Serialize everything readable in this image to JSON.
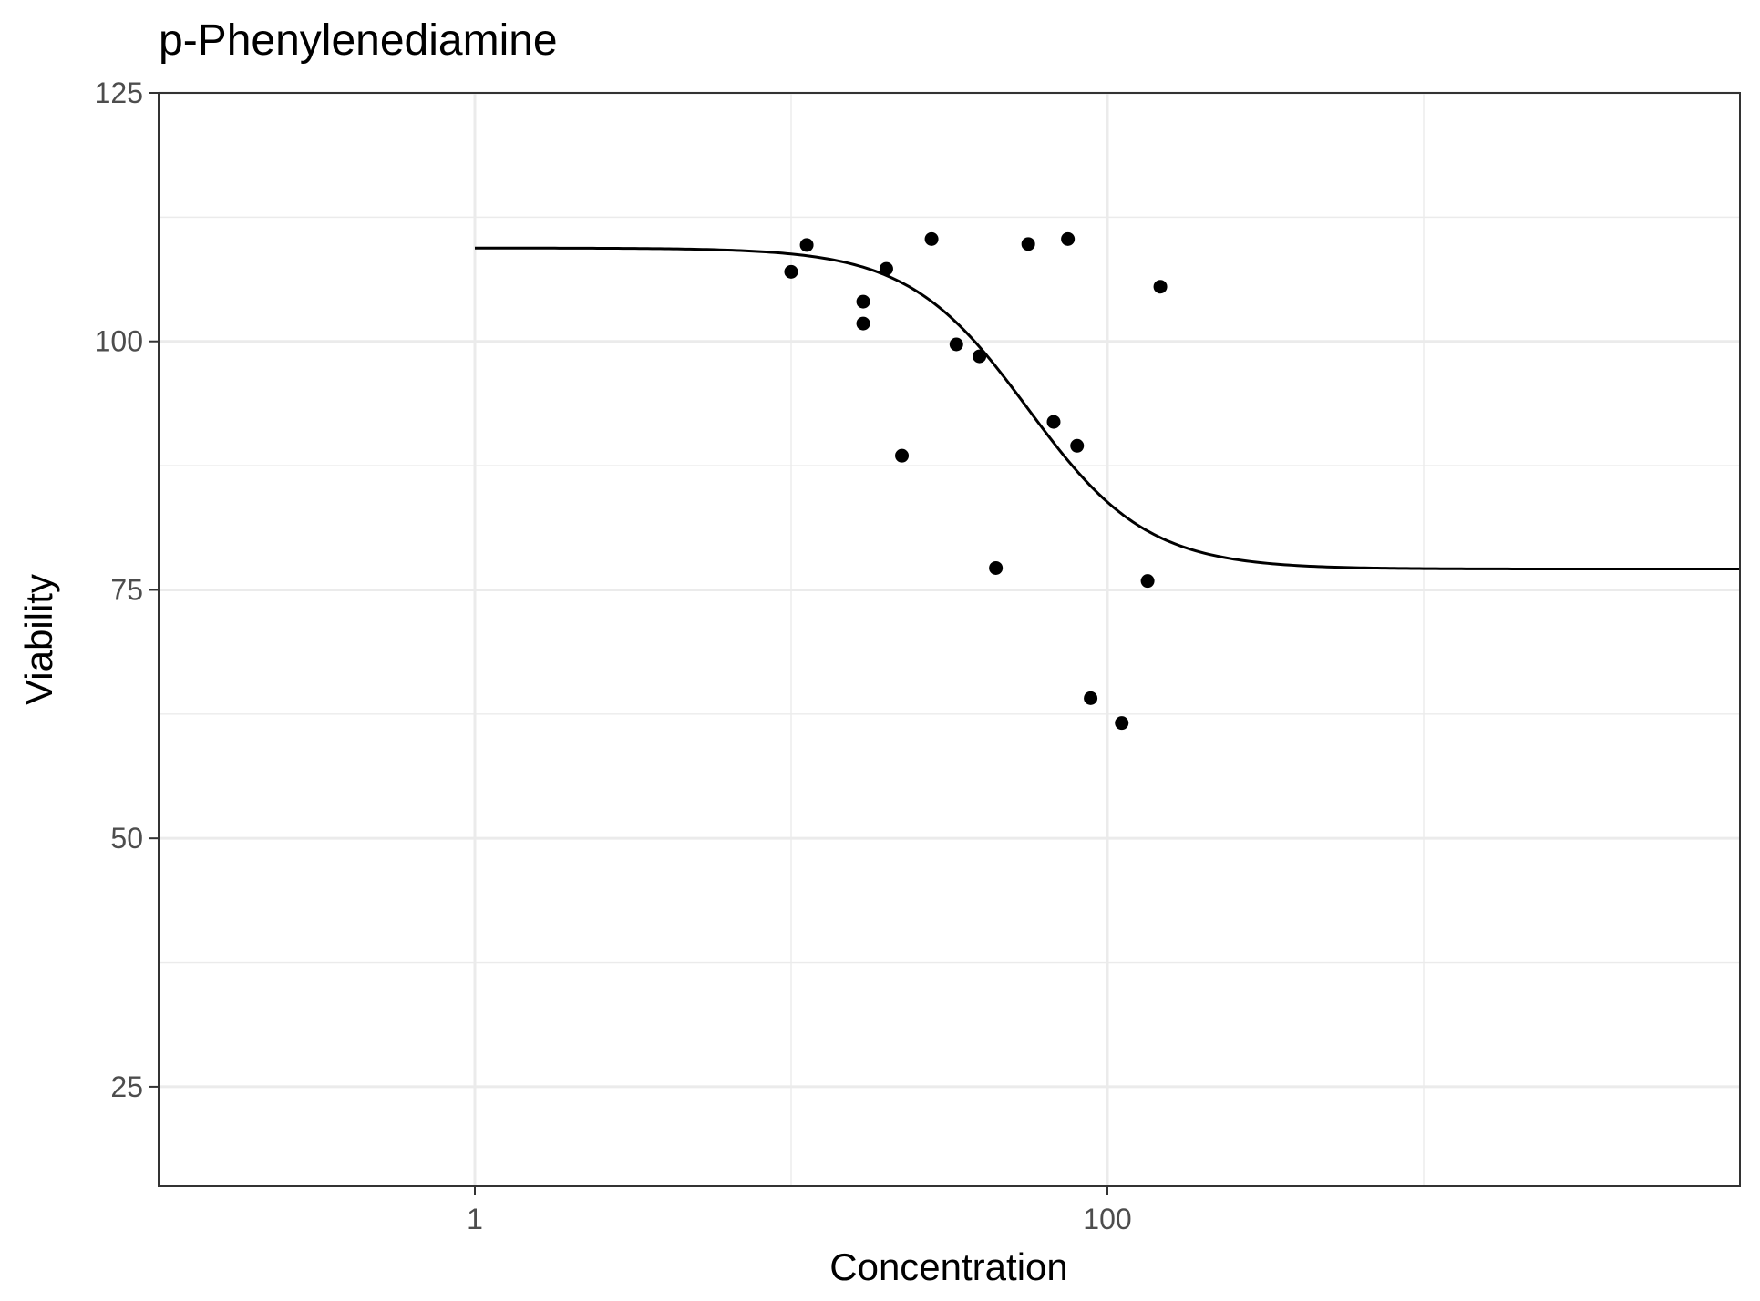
{
  "chart_data": {
    "type": "scatter",
    "title": "p-Phenylenediamine",
    "xlabel": "Concentration",
    "ylabel": "Viability",
    "x_scale": "log10",
    "xlim": [
      0.1,
      10000
    ],
    "ylim": [
      15,
      125
    ],
    "x_ticks_major": [
      {
        "value": 1,
        "label": "1"
      },
      {
        "value": 100,
        "label": "100"
      }
    ],
    "x_grid_minor": [
      0.1,
      10,
      1000,
      10000
    ],
    "y_ticks_major": [
      {
        "value": 25,
        "label": "25"
      },
      {
        "value": 50,
        "label": "50"
      },
      {
        "value": 75,
        "label": "75"
      },
      {
        "value": 100,
        "label": "100"
      },
      {
        "value": 125,
        "label": "125"
      }
    ],
    "y_grid_minor": [
      37.5,
      62.5,
      87.5,
      112.5
    ],
    "grid": true,
    "colors": {
      "points": "#000000",
      "line": "#000000",
      "grid": "#ebebeb",
      "panel_border": "#333333",
      "tick_label": "#4d4d4d"
    },
    "series": [
      {
        "kind": "points",
        "points": [
          {
            "x": 10.0,
            "y": 107.0
          },
          {
            "x": 11.2,
            "y": 109.7
          },
          {
            "x": 16.9,
            "y": 104.0
          },
          {
            "x": 16.9,
            "y": 101.8
          },
          {
            "x": 20.0,
            "y": 107.3
          },
          {
            "x": 22.4,
            "y": 88.5
          },
          {
            "x": 27.8,
            "y": 110.3
          },
          {
            "x": 33.3,
            "y": 99.7
          },
          {
            "x": 39.4,
            "y": 98.5
          },
          {
            "x": 44.4,
            "y": 77.2
          },
          {
            "x": 56.2,
            "y": 109.8
          },
          {
            "x": 67.6,
            "y": 91.9
          },
          {
            "x": 75.0,
            "y": 110.3
          },
          {
            "x": 80.2,
            "y": 89.5
          },
          {
            "x": 88.5,
            "y": 64.1
          },
          {
            "x": 111.0,
            "y": 61.6
          },
          {
            "x": 134.0,
            "y": 75.9
          },
          {
            "x": 147.0,
            "y": 105.5
          }
        ]
      },
      {
        "kind": "fitted-curve",
        "model": "four-parameter logistic",
        "upper": 109.4,
        "lower": 77.1,
        "ec50": 56.0,
        "hill": 2.3,
        "x_range": [
          1,
          10000
        ]
      }
    ]
  }
}
